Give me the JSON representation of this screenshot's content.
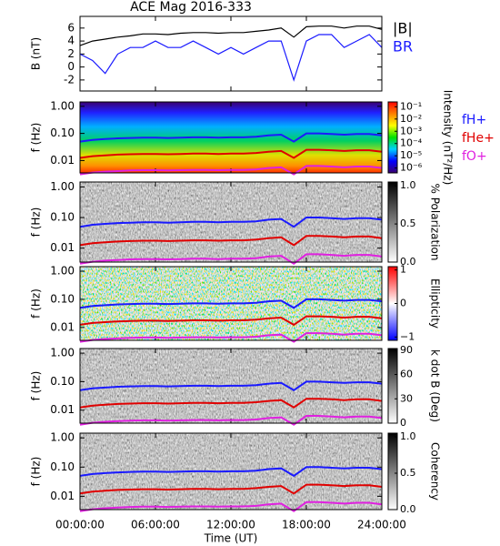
{
  "title": "ACE Mag 2016-333",
  "x_label": "Time (UT)",
  "xlim": [
    0,
    24
  ],
  "xticks": [
    {
      "value": 0,
      "label": "00:00:00"
    },
    {
      "value": 6,
      "label": "06:00:00"
    },
    {
      "value": 12,
      "label": "12:00:00"
    },
    {
      "value": 18,
      "label": "18:00:00"
    },
    {
      "value": 24,
      "label": "24:00:00"
    }
  ],
  "chart_data": [
    {
      "type": "line",
      "y_label": "B (nT)",
      "ylim": [
        -3.7,
        7.8
      ],
      "yticks": [
        -2,
        0,
        2,
        4,
        6
      ],
      "x": [
        0,
        1,
        2,
        3,
        4,
        5,
        6,
        7,
        8,
        9,
        10,
        11,
        12,
        13,
        14,
        15,
        16,
        17,
        18,
        19,
        20,
        21,
        22,
        23,
        24
      ],
      "series": [
        {
          "name": "|B|",
          "color": "#000000",
          "values": [
            3.3,
            4.0,
            4.3,
            4.6,
            4.8,
            5.1,
            5.1,
            5.0,
            5.2,
            5.3,
            5.3,
            5.2,
            5.3,
            5.3,
            5.5,
            5.7,
            6.0,
            4.6,
            6.2,
            6.3,
            6.3,
            6.0,
            6.3,
            6.3,
            5.8
          ]
        },
        {
          "name": "BR",
          "color": "#1a1aff",
          "values": [
            2,
            1,
            -1,
            2,
            3,
            3,
            4,
            3,
            3,
            4,
            3,
            2,
            3,
            2,
            3,
            4,
            4,
            -2,
            4,
            5,
            5,
            3,
            4,
            5,
            3
          ]
        }
      ]
    },
    {
      "type": "spectrogram",
      "y_label": "f (Hz)",
      "log": true,
      "ylim": [
        0.0035,
        1.45
      ],
      "yticks": [
        {
          "value": 1,
          "label": "1.00"
        },
        {
          "value": 0.1,
          "label": "0.10"
        },
        {
          "value": 0.01,
          "label": "0.01"
        }
      ],
      "background": "spectrum",
      "colorbar": {
        "label": "Intensity (nT²/Hz)",
        "log": true,
        "lim": [
          4e-07,
          0.25
        ],
        "colors": [
          "#3a0070",
          "#0000ff",
          "#00d0ff",
          "#00e000",
          "#ffff00",
          "#ff8000",
          "#ff0000"
        ],
        "ticks": [
          {
            "value": 0.1,
            "label": "10⁻¹"
          },
          {
            "value": 0.01,
            "label": "10⁻²"
          },
          {
            "value": 0.001,
            "label": "10⁻³"
          },
          {
            "value": 0.0001,
            "label": "10⁻⁴"
          },
          {
            "value": 1e-05,
            "label": "10⁻⁵"
          },
          {
            "value": 1e-06,
            "label": "10⁻⁶"
          }
        ]
      },
      "x": [
        0,
        1,
        2,
        3,
        4,
        5,
        6,
        7,
        8,
        9,
        10,
        11,
        12,
        13,
        14,
        15,
        16,
        17,
        18,
        19,
        20,
        21,
        22,
        23,
        24
      ],
      "series": [
        {
          "name": "fH+",
          "color": "#1a1aff",
          "values": [
            0.05,
            0.058,
            0.062,
            0.066,
            0.068,
            0.07,
            0.07,
            0.068,
            0.07,
            0.072,
            0.072,
            0.07,
            0.072,
            0.072,
            0.075,
            0.085,
            0.09,
            0.05,
            0.1,
            0.1,
            0.095,
            0.09,
            0.095,
            0.095,
            0.085
          ]
        },
        {
          "name": "fHe+",
          "color": "#e00000",
          "values": [
            0.0125,
            0.0145,
            0.0155,
            0.0165,
            0.017,
            0.0175,
            0.0175,
            0.017,
            0.0175,
            0.018,
            0.018,
            0.0175,
            0.018,
            0.018,
            0.019,
            0.021,
            0.0225,
            0.0125,
            0.025,
            0.025,
            0.024,
            0.0225,
            0.024,
            0.024,
            0.021
          ]
        },
        {
          "name": "fO+",
          "color": "#e020e0",
          "values": [
            0.0031,
            0.0036,
            0.0039,
            0.0041,
            0.0043,
            0.0044,
            0.0044,
            0.0043,
            0.0044,
            0.0045,
            0.0045,
            0.0044,
            0.0045,
            0.0045,
            0.0047,
            0.0053,
            0.0056,
            0.0031,
            0.0063,
            0.0063,
            0.006,
            0.0056,
            0.006,
            0.006,
            0.0053
          ]
        }
      ]
    },
    {
      "type": "spectrogram",
      "y_label": "f (Hz)",
      "log": true,
      "ylim": [
        0.0035,
        1.45
      ],
      "yticks": [
        {
          "value": 1,
          "label": "1.00"
        },
        {
          "value": 0.1,
          "label": "0.10"
        },
        {
          "value": 0.01,
          "label": "0.01"
        }
      ],
      "background": "gray",
      "colorbar": {
        "label": "% Polarization",
        "lim": [
          0,
          1.05
        ],
        "colors": [
          "#ffffff",
          "#000000"
        ],
        "ticks": [
          {
            "value": 0,
            "label": "0.0"
          },
          {
            "value": 0.5,
            "label": "0.5"
          },
          {
            "value": 1,
            "label": "1.0"
          }
        ]
      }
    },
    {
      "type": "spectrogram",
      "y_label": "f (Hz)",
      "log": true,
      "ylim": [
        0.0035,
        1.45
      ],
      "yticks": [
        {
          "value": 1,
          "label": "1.00"
        },
        {
          "value": 0.1,
          "label": "0.10"
        },
        {
          "value": 0.01,
          "label": "0.01"
        }
      ],
      "background": "redblue",
      "colorbar": {
        "label": "Ellipticity",
        "lim": [
          -1.1,
          1.1
        ],
        "colors": [
          "#0000ff",
          "#ffffff",
          "#ff0000"
        ],
        "ticks": [
          {
            "value": -1,
            "label": "−1"
          },
          0,
          1
        ]
      }
    },
    {
      "type": "spectrogram",
      "y_label": "f (Hz)",
      "log": true,
      "ylim": [
        0.0035,
        1.45
      ],
      "yticks": [
        {
          "value": 1,
          "label": "1.00"
        },
        {
          "value": 0.1,
          "label": "0.10"
        },
        {
          "value": 0.01,
          "label": "0.01"
        }
      ],
      "background": "gray",
      "colorbar": {
        "label": "k dot B (Deg)",
        "lim": [
          0,
          92
        ],
        "colors": [
          "#ffffff",
          "#000000"
        ],
        "ticks": [
          0,
          30,
          60,
          90
        ]
      }
    },
    {
      "type": "spectrogram",
      "y_label": "f (Hz)",
      "log": true,
      "ylim": [
        0.0035,
        1.45
      ],
      "yticks": [
        {
          "value": 1,
          "label": "1.00"
        },
        {
          "value": 0.1,
          "label": "0.10"
        },
        {
          "value": 0.01,
          "label": "0.01"
        }
      ],
      "background": "gray",
      "colorbar": {
        "label": "Coherency",
        "lim": [
          0,
          1.05
        ],
        "colors": [
          "#ffffff",
          "#000000"
        ],
        "ticks": [
          {
            "value": 0,
            "label": "0.0"
          },
          {
            "value": 0.5,
            "label": "0.5"
          },
          {
            "value": 1,
            "label": "1.0"
          }
        ]
      }
    }
  ]
}
